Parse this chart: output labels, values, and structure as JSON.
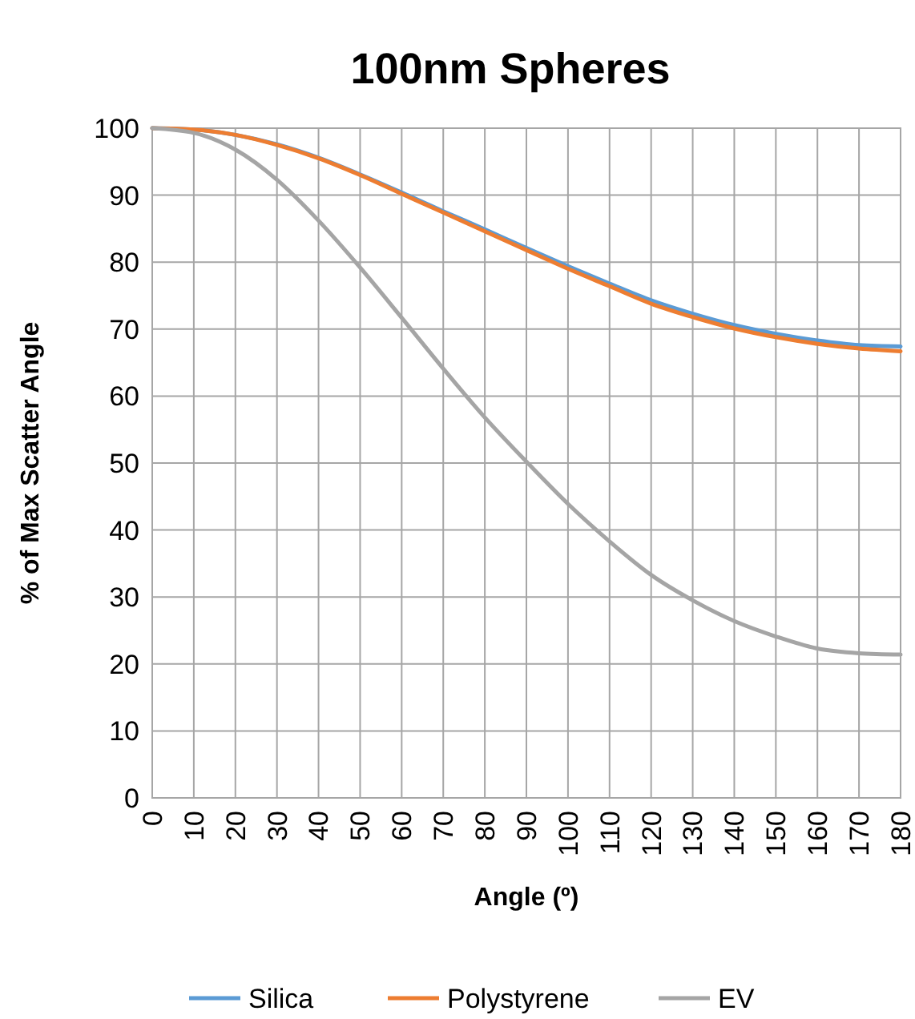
{
  "chart_data": {
    "type": "line",
    "title": "100nm Spheres",
    "xlabel": "Angle (º)",
    "ylabel": "% of Max Scatter Angle",
    "x": [
      0,
      10,
      20,
      30,
      40,
      50,
      60,
      70,
      80,
      90,
      100,
      110,
      120,
      130,
      140,
      150,
      160,
      170,
      180
    ],
    "series": [
      {
        "name": "Silica",
        "color": "#5b9bd5",
        "values": [
          100,
          99.8,
          99,
          97.6,
          95.6,
          93.1,
          90.4,
          87.6,
          84.9,
          82.1,
          79.4,
          76.8,
          74.3,
          72.3,
          70.6,
          69.3,
          68.3,
          67.6,
          67.4
        ]
      },
      {
        "name": "Polystyrene",
        "color": "#ed7d31",
        "values": [
          100,
          99.8,
          99,
          97.5,
          95.5,
          93,
          90.2,
          87.4,
          84.6,
          81.8,
          79,
          76.4,
          73.8,
          71.8,
          70.1,
          68.8,
          67.8,
          67.1,
          66.7
        ]
      },
      {
        "name": "EV",
        "color": "#a5a5a5",
        "values": [
          100,
          99.3,
          96.8,
          92.3,
          86.2,
          79.2,
          71.7,
          64.1,
          56.8,
          50.2,
          43.9,
          38.3,
          33.3,
          29.5,
          26.4,
          24.1,
          22.3,
          21.6,
          21.4
        ]
      }
    ],
    "xlim": [
      0,
      180
    ],
    "xticks": [
      0,
      10,
      20,
      30,
      40,
      50,
      60,
      70,
      80,
      90,
      100,
      110,
      120,
      130,
      140,
      150,
      160,
      170,
      180
    ],
    "ylim": [
      0,
      100
    ],
    "yticks": [
      0,
      10,
      20,
      30,
      40,
      50,
      60,
      70,
      80,
      90,
      100
    ],
    "grid": true,
    "legend": "bottom",
    "marker": "none",
    "line_style": "solid"
  }
}
